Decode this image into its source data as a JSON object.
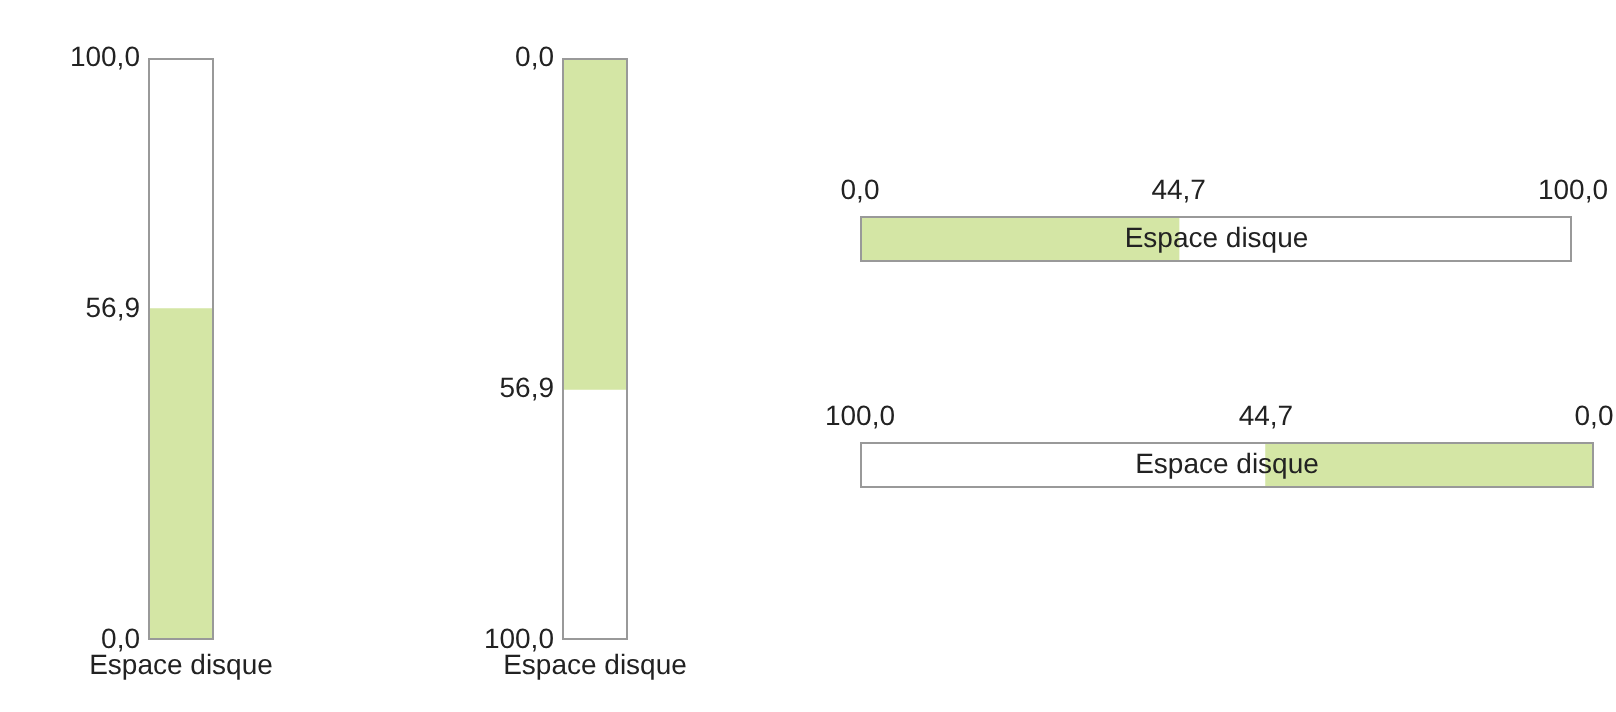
{
  "chart_data": [
    {
      "type": "bar",
      "categories": [
        "Espace disque"
      ],
      "values": [
        56.9
      ],
      "color": "#d4e6a5",
      "ylim": [
        0,
        100
      ],
      "yticks": [
        {
          "value": 0,
          "label": "0,0"
        },
        {
          "value": 56.9,
          "label": "56,9"
        },
        {
          "value": 100,
          "label": "100,0"
        }
      ]
    },
    {
      "type": "bar",
      "categories": [
        "Espace disque"
      ],
      "values": [
        56.9
      ],
      "color": "#d4e6a5",
      "ylim": [
        100,
        0
      ],
      "yticks": [
        {
          "value": 0,
          "label": "0,0"
        },
        {
          "value": 56.9,
          "label": "56,9"
        },
        {
          "value": 100,
          "label": "100,0"
        }
      ]
    },
    {
      "type": "bar",
      "orientation": "horizontal",
      "categories": [
        "Espace disque"
      ],
      "values": [
        44.7
      ],
      "color": "#d4e6a5",
      "xlim": [
        0,
        100
      ],
      "xticks": [
        {
          "value": 0,
          "label": "0,0"
        },
        {
          "value": 44.7,
          "label": "44,7"
        },
        {
          "value": 100,
          "label": "100,0"
        }
      ]
    },
    {
      "type": "bar",
      "orientation": "horizontal",
      "categories": [
        "Espace disque"
      ],
      "values": [
        44.7
      ],
      "color": "#d4e6a5",
      "xlim": [
        100,
        0
      ],
      "xticks": [
        {
          "value": 0,
          "label": "0,0"
        },
        {
          "value": 44.7,
          "label": "44,7"
        },
        {
          "value": 100,
          "label": "100,0"
        }
      ]
    }
  ]
}
